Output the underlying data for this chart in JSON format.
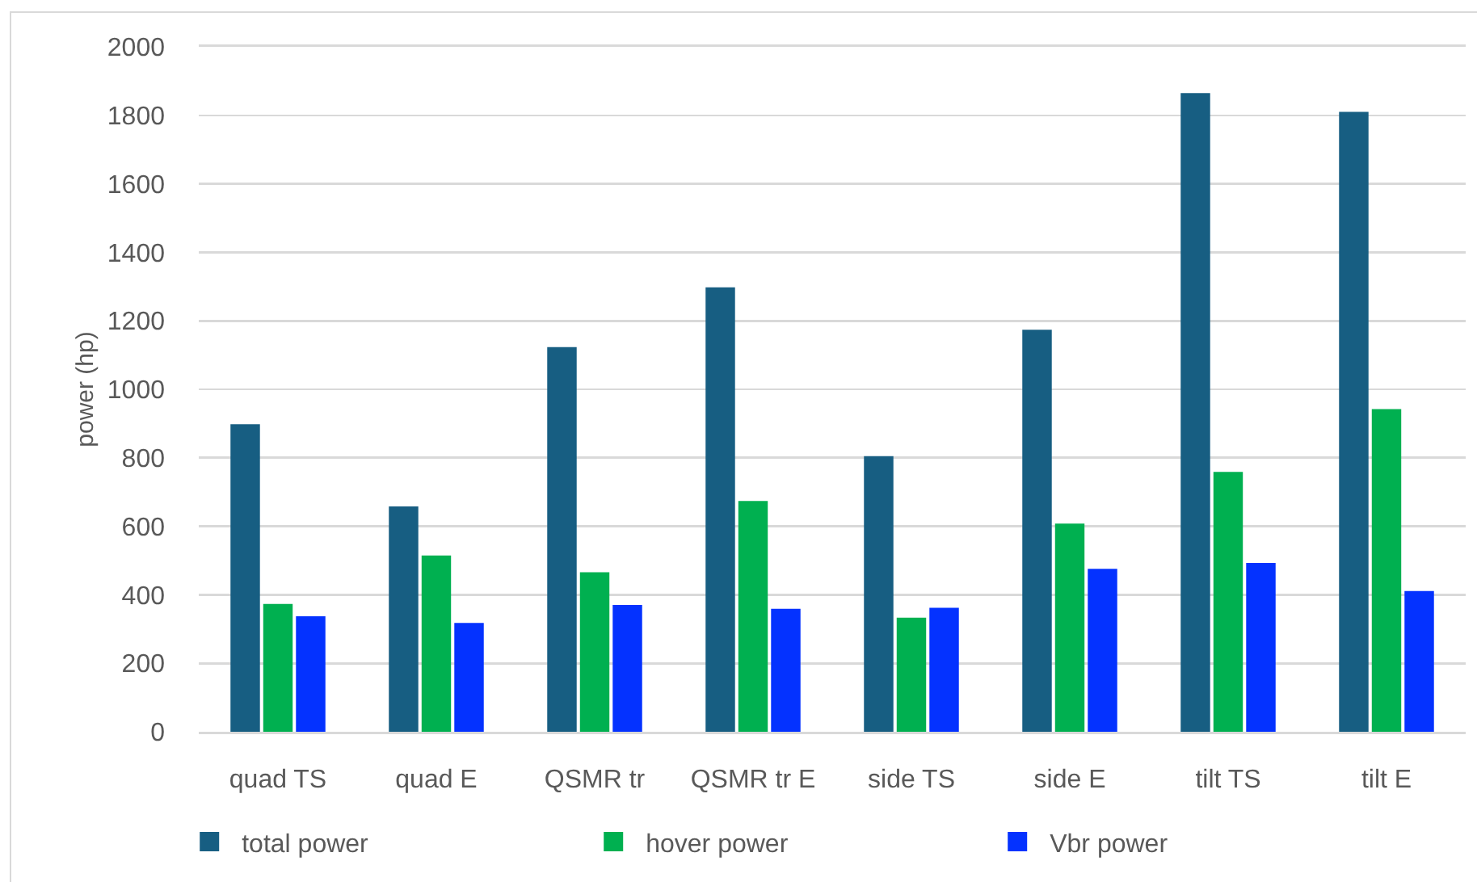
{
  "chart_data": {
    "type": "bar",
    "ylabel": "power (hp)",
    "categories": [
      "quad TS",
      "quad E",
      "QSMR tr",
      "QSMR tr E",
      "side TS",
      "side E",
      "tilt TS",
      "tilt E"
    ],
    "series": [
      {
        "name": "total power",
        "color": "#175e82",
        "values": [
          898,
          658,
          1123,
          1298,
          805,
          1174,
          1865,
          1810
        ]
      },
      {
        "name": "hover power",
        "color": "#00b050",
        "values": [
          373,
          515,
          466,
          674,
          333,
          608,
          759,
          942
        ]
      },
      {
        "name": "Vbr power",
        "color": "#0432ff",
        "values": [
          337,
          318,
          370,
          359,
          362,
          476,
          493,
          411
        ]
      }
    ],
    "ylim": [
      0,
      2000
    ],
    "yticks": [
      0,
      200,
      400,
      600,
      800,
      1000,
      1200,
      1400,
      1600,
      1800,
      2000
    ],
    "grid": "y",
    "legend": "bottom"
  }
}
